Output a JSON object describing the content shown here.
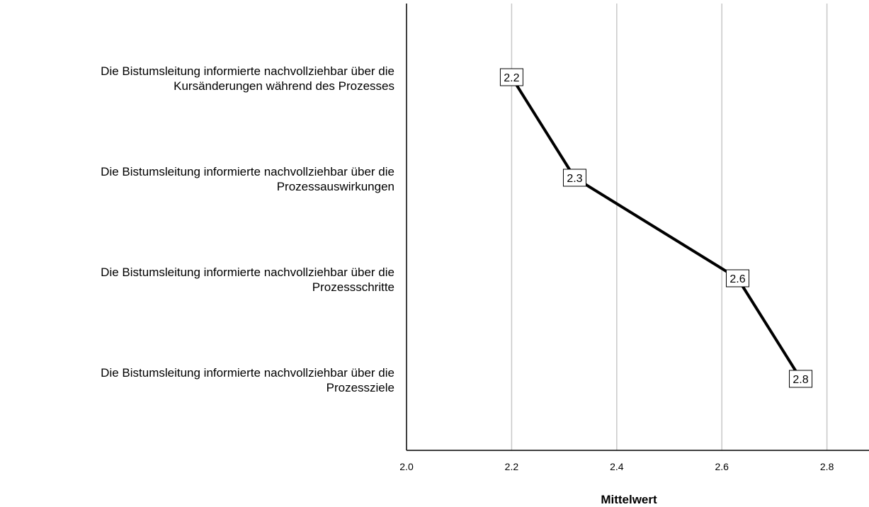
{
  "chart_data": {
    "type": "line",
    "orientation": "horizontal",
    "categories": [
      [
        "Die Bistumsleitung informierte nachvollziehbar über die",
        "Kursänderungen während des Prozesses"
      ],
      [
        "Die Bistumsleitung informierte nachvollziehbar über die",
        "Prozessauswirkungen"
      ],
      [
        "Die Bistumsleitung informierte nachvollziehbar über die",
        "Prozessschritte"
      ],
      [
        "Die Bistumsleitung informierte nachvollziehbar über die",
        "Prozessziele"
      ]
    ],
    "values": [
      2.2,
      2.32,
      2.63,
      2.75
    ],
    "data_labels": [
      "2.2",
      "2.3",
      "2.6",
      "2.8"
    ],
    "xlabel": "Mittelwert",
    "xlim": [
      2.0,
      2.88
    ],
    "xticks": [
      2.0,
      2.2,
      2.4,
      2.6,
      2.8
    ],
    "xtick_labels": [
      "2.0",
      "2.2",
      "2.4",
      "2.6",
      "2.8"
    ],
    "grid": true,
    "colors": {
      "line": "#000000",
      "grid": "#c8c8c8",
      "axis": "#000000"
    }
  }
}
